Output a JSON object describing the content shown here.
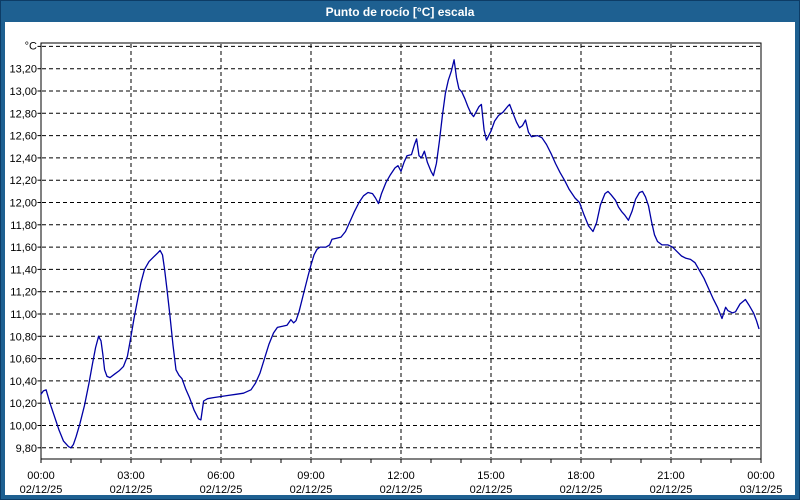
{
  "window": {
    "title": "Punto de rocío [°C] escala"
  },
  "colors": {
    "titlebar_bg": "#1e6091",
    "frame_border": "#1e6091",
    "outer_edge": "#0d3c66",
    "line": "#0000a5",
    "grid": "#000000",
    "text": "#000000",
    "background": "#ffffff"
  },
  "chart_data": {
    "type": "line",
    "title": "Punto de rocío [°C] escala",
    "xlabel": "",
    "ylabel": "°C",
    "grid": true,
    "legend_position": "none",
    "y_axis": {
      "unit": "°C",
      "grid_max": 13.4,
      "grid_min": 9.8,
      "step": 0.2,
      "ticks": [
        {
          "value": 13.2,
          "label": "13,20"
        },
        {
          "value": 13.0,
          "label": "13,00"
        },
        {
          "value": 12.8,
          "label": "12,80"
        },
        {
          "value": 12.6,
          "label": "12,60"
        },
        {
          "value": 12.4,
          "label": "12,40"
        },
        {
          "value": 12.2,
          "label": "12,20"
        },
        {
          "value": 12.0,
          "label": "12,00"
        },
        {
          "value": 11.8,
          "label": "11,80"
        },
        {
          "value": 11.6,
          "label": "11,60"
        },
        {
          "value": 11.4,
          "label": "11,40"
        },
        {
          "value": 11.2,
          "label": "11,20"
        },
        {
          "value": 11.0,
          "label": "11,00"
        },
        {
          "value": 10.8,
          "label": "10,80"
        },
        {
          "value": 10.6,
          "label": "10,60"
        },
        {
          "value": 10.4,
          "label": "10,40"
        },
        {
          "value": 10.2,
          "label": "10,20"
        },
        {
          "value": 10.0,
          "label": "10,00"
        },
        {
          "value": 9.8,
          "label": "9,80"
        }
      ]
    },
    "x_axis": {
      "hours_range": [
        0,
        24
      ],
      "minor_tick_every_hours": 1,
      "ticks": [
        {
          "t": 0,
          "time": "00:00",
          "date": "02/12/25"
        },
        {
          "t": 3,
          "time": "03:00",
          "date": "02/12/25"
        },
        {
          "t": 6,
          "time": "06:00",
          "date": "02/12/25"
        },
        {
          "t": 9,
          "time": "09:00",
          "date": "02/12/25"
        },
        {
          "t": 12,
          "time": "12:00",
          "date": "02/12/25"
        },
        {
          "t": 15,
          "time": "15:00",
          "date": "02/12/25"
        },
        {
          "t": 18,
          "time": "18:00",
          "date": "02/12/25"
        },
        {
          "t": 21,
          "time": "21:00",
          "date": "02/12/25"
        },
        {
          "t": 24,
          "time": "00:00",
          "date": "03/12/25"
        }
      ]
    },
    "series": [
      {
        "name": "Punto de rocío",
        "points": [
          [
            0.0,
            10.28
          ],
          [
            0.08,
            10.31
          ],
          [
            0.17,
            10.32
          ],
          [
            0.3,
            10.2
          ],
          [
            0.45,
            10.08
          ],
          [
            0.6,
            9.96
          ],
          [
            0.75,
            9.86
          ],
          [
            0.92,
            9.81
          ],
          [
            1.0,
            9.8
          ],
          [
            1.08,
            9.83
          ],
          [
            1.17,
            9.9
          ],
          [
            1.3,
            10.02
          ],
          [
            1.45,
            10.18
          ],
          [
            1.6,
            10.38
          ],
          [
            1.72,
            10.56
          ],
          [
            1.82,
            10.7
          ],
          [
            1.92,
            10.8
          ],
          [
            2.0,
            10.76
          ],
          [
            2.06,
            10.64
          ],
          [
            2.12,
            10.5
          ],
          [
            2.2,
            10.44
          ],
          [
            2.3,
            10.43
          ],
          [
            2.45,
            10.46
          ],
          [
            2.6,
            10.49
          ],
          [
            2.75,
            10.53
          ],
          [
            2.88,
            10.62
          ],
          [
            3.0,
            10.8
          ],
          [
            3.1,
            10.96
          ],
          [
            3.2,
            11.1
          ],
          [
            3.33,
            11.28
          ],
          [
            3.45,
            11.4
          ],
          [
            3.6,
            11.47
          ],
          [
            3.75,
            11.51
          ],
          [
            3.9,
            11.55
          ],
          [
            3.97,
            11.57
          ],
          [
            4.05,
            11.53
          ],
          [
            4.12,
            11.4
          ],
          [
            4.2,
            11.22
          ],
          [
            4.3,
            10.98
          ],
          [
            4.4,
            10.72
          ],
          [
            4.5,
            10.5
          ],
          [
            4.6,
            10.45
          ],
          [
            4.7,
            10.42
          ],
          [
            4.82,
            10.33
          ],
          [
            4.95,
            10.25
          ],
          [
            5.1,
            10.14
          ],
          [
            5.25,
            10.06
          ],
          [
            5.33,
            10.05
          ],
          [
            5.42,
            10.22
          ],
          [
            5.55,
            10.24
          ],
          [
            5.75,
            10.25
          ],
          [
            6.0,
            10.26
          ],
          [
            6.25,
            10.27
          ],
          [
            6.5,
            10.28
          ],
          [
            6.75,
            10.29
          ],
          [
            7.0,
            10.32
          ],
          [
            7.15,
            10.38
          ],
          [
            7.3,
            10.47
          ],
          [
            7.45,
            10.6
          ],
          [
            7.6,
            10.73
          ],
          [
            7.75,
            10.83
          ],
          [
            7.88,
            10.88
          ],
          [
            8.05,
            10.89
          ],
          [
            8.2,
            10.9
          ],
          [
            8.33,
            10.95
          ],
          [
            8.42,
            10.92
          ],
          [
            8.5,
            10.94
          ],
          [
            8.6,
            11.02
          ],
          [
            8.75,
            11.18
          ],
          [
            8.9,
            11.34
          ],
          [
            9.0,
            11.44
          ],
          [
            9.1,
            11.53
          ],
          [
            9.2,
            11.58
          ],
          [
            9.3,
            11.6
          ],
          [
            9.5,
            11.6
          ],
          [
            9.62,
            11.62
          ],
          [
            9.7,
            11.67
          ],
          [
            9.85,
            11.68
          ],
          [
            10.0,
            11.69
          ],
          [
            10.15,
            11.74
          ],
          [
            10.3,
            11.83
          ],
          [
            10.45,
            11.92
          ],
          [
            10.6,
            12.0
          ],
          [
            10.75,
            12.06
          ],
          [
            10.9,
            12.09
          ],
          [
            11.05,
            12.08
          ],
          [
            11.15,
            12.04
          ],
          [
            11.25,
            11.99
          ],
          [
            11.35,
            12.08
          ],
          [
            11.5,
            12.18
          ],
          [
            11.65,
            12.25
          ],
          [
            11.8,
            12.31
          ],
          [
            11.9,
            12.33
          ],
          [
            12.0,
            12.28
          ],
          [
            12.1,
            12.36
          ],
          [
            12.2,
            12.42
          ],
          [
            12.35,
            12.43
          ],
          [
            12.45,
            12.52
          ],
          [
            12.52,
            12.57
          ],
          [
            12.6,
            12.42
          ],
          [
            12.68,
            12.4
          ],
          [
            12.78,
            12.46
          ],
          [
            12.88,
            12.36
          ],
          [
            13.0,
            12.28
          ],
          [
            13.08,
            12.24
          ],
          [
            13.18,
            12.35
          ],
          [
            13.28,
            12.55
          ],
          [
            13.38,
            12.78
          ],
          [
            13.48,
            12.98
          ],
          [
            13.58,
            13.1
          ],
          [
            13.68,
            13.18
          ],
          [
            13.77,
            13.28
          ],
          [
            13.85,
            13.12
          ],
          [
            13.93,
            13.02
          ],
          [
            14.03,
            12.99
          ],
          [
            14.13,
            12.93
          ],
          [
            14.23,
            12.86
          ],
          [
            14.33,
            12.8
          ],
          [
            14.42,
            12.77
          ],
          [
            14.5,
            12.81
          ],
          [
            14.6,
            12.86
          ],
          [
            14.68,
            12.88
          ],
          [
            14.77,
            12.65
          ],
          [
            14.85,
            12.56
          ],
          [
            15.0,
            12.64
          ],
          [
            15.12,
            12.73
          ],
          [
            15.25,
            12.78
          ],
          [
            15.4,
            12.81
          ],
          [
            15.55,
            12.86
          ],
          [
            15.62,
            12.88
          ],
          [
            15.72,
            12.81
          ],
          [
            15.85,
            12.72
          ],
          [
            15.95,
            12.67
          ],
          [
            16.05,
            12.69
          ],
          [
            16.15,
            12.74
          ],
          [
            16.25,
            12.63
          ],
          [
            16.35,
            12.59
          ],
          [
            16.55,
            12.6
          ],
          [
            16.7,
            12.58
          ],
          [
            16.85,
            12.52
          ],
          [
            17.0,
            12.44
          ],
          [
            17.15,
            12.35
          ],
          [
            17.3,
            12.27
          ],
          [
            17.45,
            12.2
          ],
          [
            17.6,
            12.12
          ],
          [
            17.8,
            12.04
          ],
          [
            17.95,
            12.0
          ],
          [
            18.1,
            11.89
          ],
          [
            18.25,
            11.79
          ],
          [
            18.4,
            11.74
          ],
          [
            18.52,
            11.82
          ],
          [
            18.65,
            11.98
          ],
          [
            18.8,
            12.08
          ],
          [
            18.9,
            12.1
          ],
          [
            19.0,
            12.07
          ],
          [
            19.15,
            12.02
          ],
          [
            19.25,
            11.96
          ],
          [
            19.35,
            11.92
          ],
          [
            19.45,
            11.89
          ],
          [
            19.58,
            11.84
          ],
          [
            19.7,
            11.92
          ],
          [
            19.82,
            12.03
          ],
          [
            19.95,
            12.09
          ],
          [
            20.05,
            12.1
          ],
          [
            20.15,
            12.05
          ],
          [
            20.25,
            11.97
          ],
          [
            20.35,
            11.83
          ],
          [
            20.45,
            11.71
          ],
          [
            20.55,
            11.65
          ],
          [
            20.7,
            11.62
          ],
          [
            20.9,
            11.62
          ],
          [
            21.05,
            11.6
          ],
          [
            21.2,
            11.56
          ],
          [
            21.35,
            11.52
          ],
          [
            21.5,
            11.5
          ],
          [
            21.65,
            11.49
          ],
          [
            21.8,
            11.46
          ],
          [
            21.95,
            11.39
          ],
          [
            22.1,
            11.32
          ],
          [
            22.25,
            11.23
          ],
          [
            22.4,
            11.14
          ],
          [
            22.55,
            11.06
          ],
          [
            22.7,
            10.96
          ],
          [
            22.82,
            11.06
          ],
          [
            22.9,
            11.03
          ],
          [
            23.05,
            11.01
          ],
          [
            23.15,
            11.02
          ],
          [
            23.3,
            11.09
          ],
          [
            23.48,
            11.13
          ],
          [
            23.6,
            11.08
          ],
          [
            23.75,
            11.01
          ],
          [
            23.85,
            10.94
          ],
          [
            23.93,
            10.87
          ]
        ]
      }
    ]
  }
}
